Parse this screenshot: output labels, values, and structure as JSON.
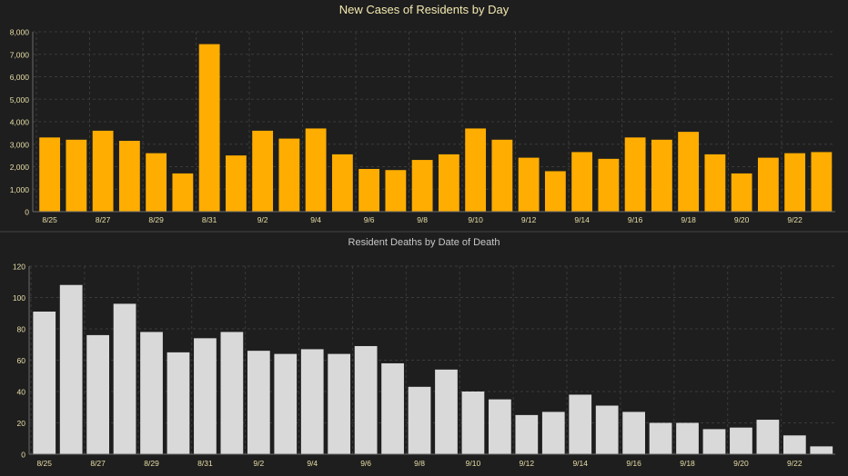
{
  "colors": {
    "background": "#1e1e1e",
    "grid": "#3a3a3a",
    "axis": "#6a6a6a",
    "divider": "#444444",
    "cases_bar": "#ffad00",
    "deaths_bar": "#d9d9d9",
    "cases_title": "#f3e9b0",
    "deaths_title": "#c8c8c8",
    "tick_text": "#e8dfa8"
  },
  "chart_data": [
    {
      "type": "bar",
      "title": "New Cases of Residents by Day",
      "xlabel": "",
      "ylabel": "",
      "ylim": [
        0,
        8000
      ],
      "yticks": [
        "0",
        "1,000",
        "2,000",
        "3,000",
        "4,000",
        "5,000",
        "6,000",
        "7,000",
        "8,000"
      ],
      "grid": true,
      "legend": "none",
      "categories": [
        "8/25",
        "8/26",
        "8/27",
        "8/28",
        "8/29",
        "8/30",
        "8/31",
        "9/1",
        "9/2",
        "9/3",
        "9/4",
        "9/5",
        "9/6",
        "9/7",
        "9/8",
        "9/9",
        "9/10",
        "9/11",
        "9/12",
        "9/13",
        "9/14",
        "9/15",
        "9/16",
        "9/17",
        "9/18",
        "9/19",
        "9/20",
        "9/21",
        "9/22",
        "9/23"
      ],
      "xtick_labels": [
        "8/25",
        "",
        "8/27",
        "",
        "8/29",
        "",
        "8/31",
        "",
        "9/2",
        "",
        "9/4",
        "",
        "9/6",
        "",
        "9/8",
        "",
        "9/10",
        "",
        "9/12",
        "",
        "9/14",
        "",
        "9/16",
        "",
        "9/18",
        "",
        "9/20",
        "",
        "9/22",
        ""
      ],
      "values": [
        3300,
        3200,
        3600,
        3150,
        2600,
        1700,
        7450,
        2500,
        3600,
        3250,
        3700,
        2550,
        1900,
        1850,
        2300,
        2550,
        3700,
        3200,
        2400,
        1800,
        2650,
        2350,
        3300,
        3200,
        3550,
        2550,
        1700,
        2400,
        2600,
        2650
      ]
    },
    {
      "type": "bar",
      "title": "Resident Deaths by Date of Death",
      "xlabel": "",
      "ylabel": "",
      "ylim": [
        0,
        120
      ],
      "yticks": [
        "0",
        "20",
        "40",
        "60",
        "80",
        "100",
        "120"
      ],
      "grid": true,
      "legend": "none",
      "categories": [
        "8/25",
        "8/26",
        "8/27",
        "8/28",
        "8/29",
        "8/30",
        "8/31",
        "9/1",
        "9/2",
        "9/3",
        "9/4",
        "9/5",
        "9/6",
        "9/7",
        "9/8",
        "9/9",
        "9/10",
        "9/11",
        "9/12",
        "9/13",
        "9/14",
        "9/15",
        "9/16",
        "9/17",
        "9/18",
        "9/19",
        "9/20",
        "9/21",
        "9/22",
        "9/23"
      ],
      "xtick_labels": [
        "8/25",
        "",
        "8/27",
        "",
        "8/29",
        "",
        "8/31",
        "",
        "9/2",
        "",
        "9/4",
        "",
        "9/6",
        "",
        "9/8",
        "",
        "9/10",
        "",
        "9/12",
        "",
        "9/14",
        "",
        "9/16",
        "",
        "9/18",
        "",
        "9/20",
        "",
        "9/22",
        ""
      ],
      "values": [
        91,
        108,
        76,
        96,
        78,
        65,
        74,
        78,
        66,
        64,
        67,
        64,
        69,
        58,
        43,
        54,
        40,
        35,
        25,
        27,
        38,
        31,
        27,
        20,
        20,
        16,
        17,
        22,
        12,
        5
      ]
    }
  ]
}
